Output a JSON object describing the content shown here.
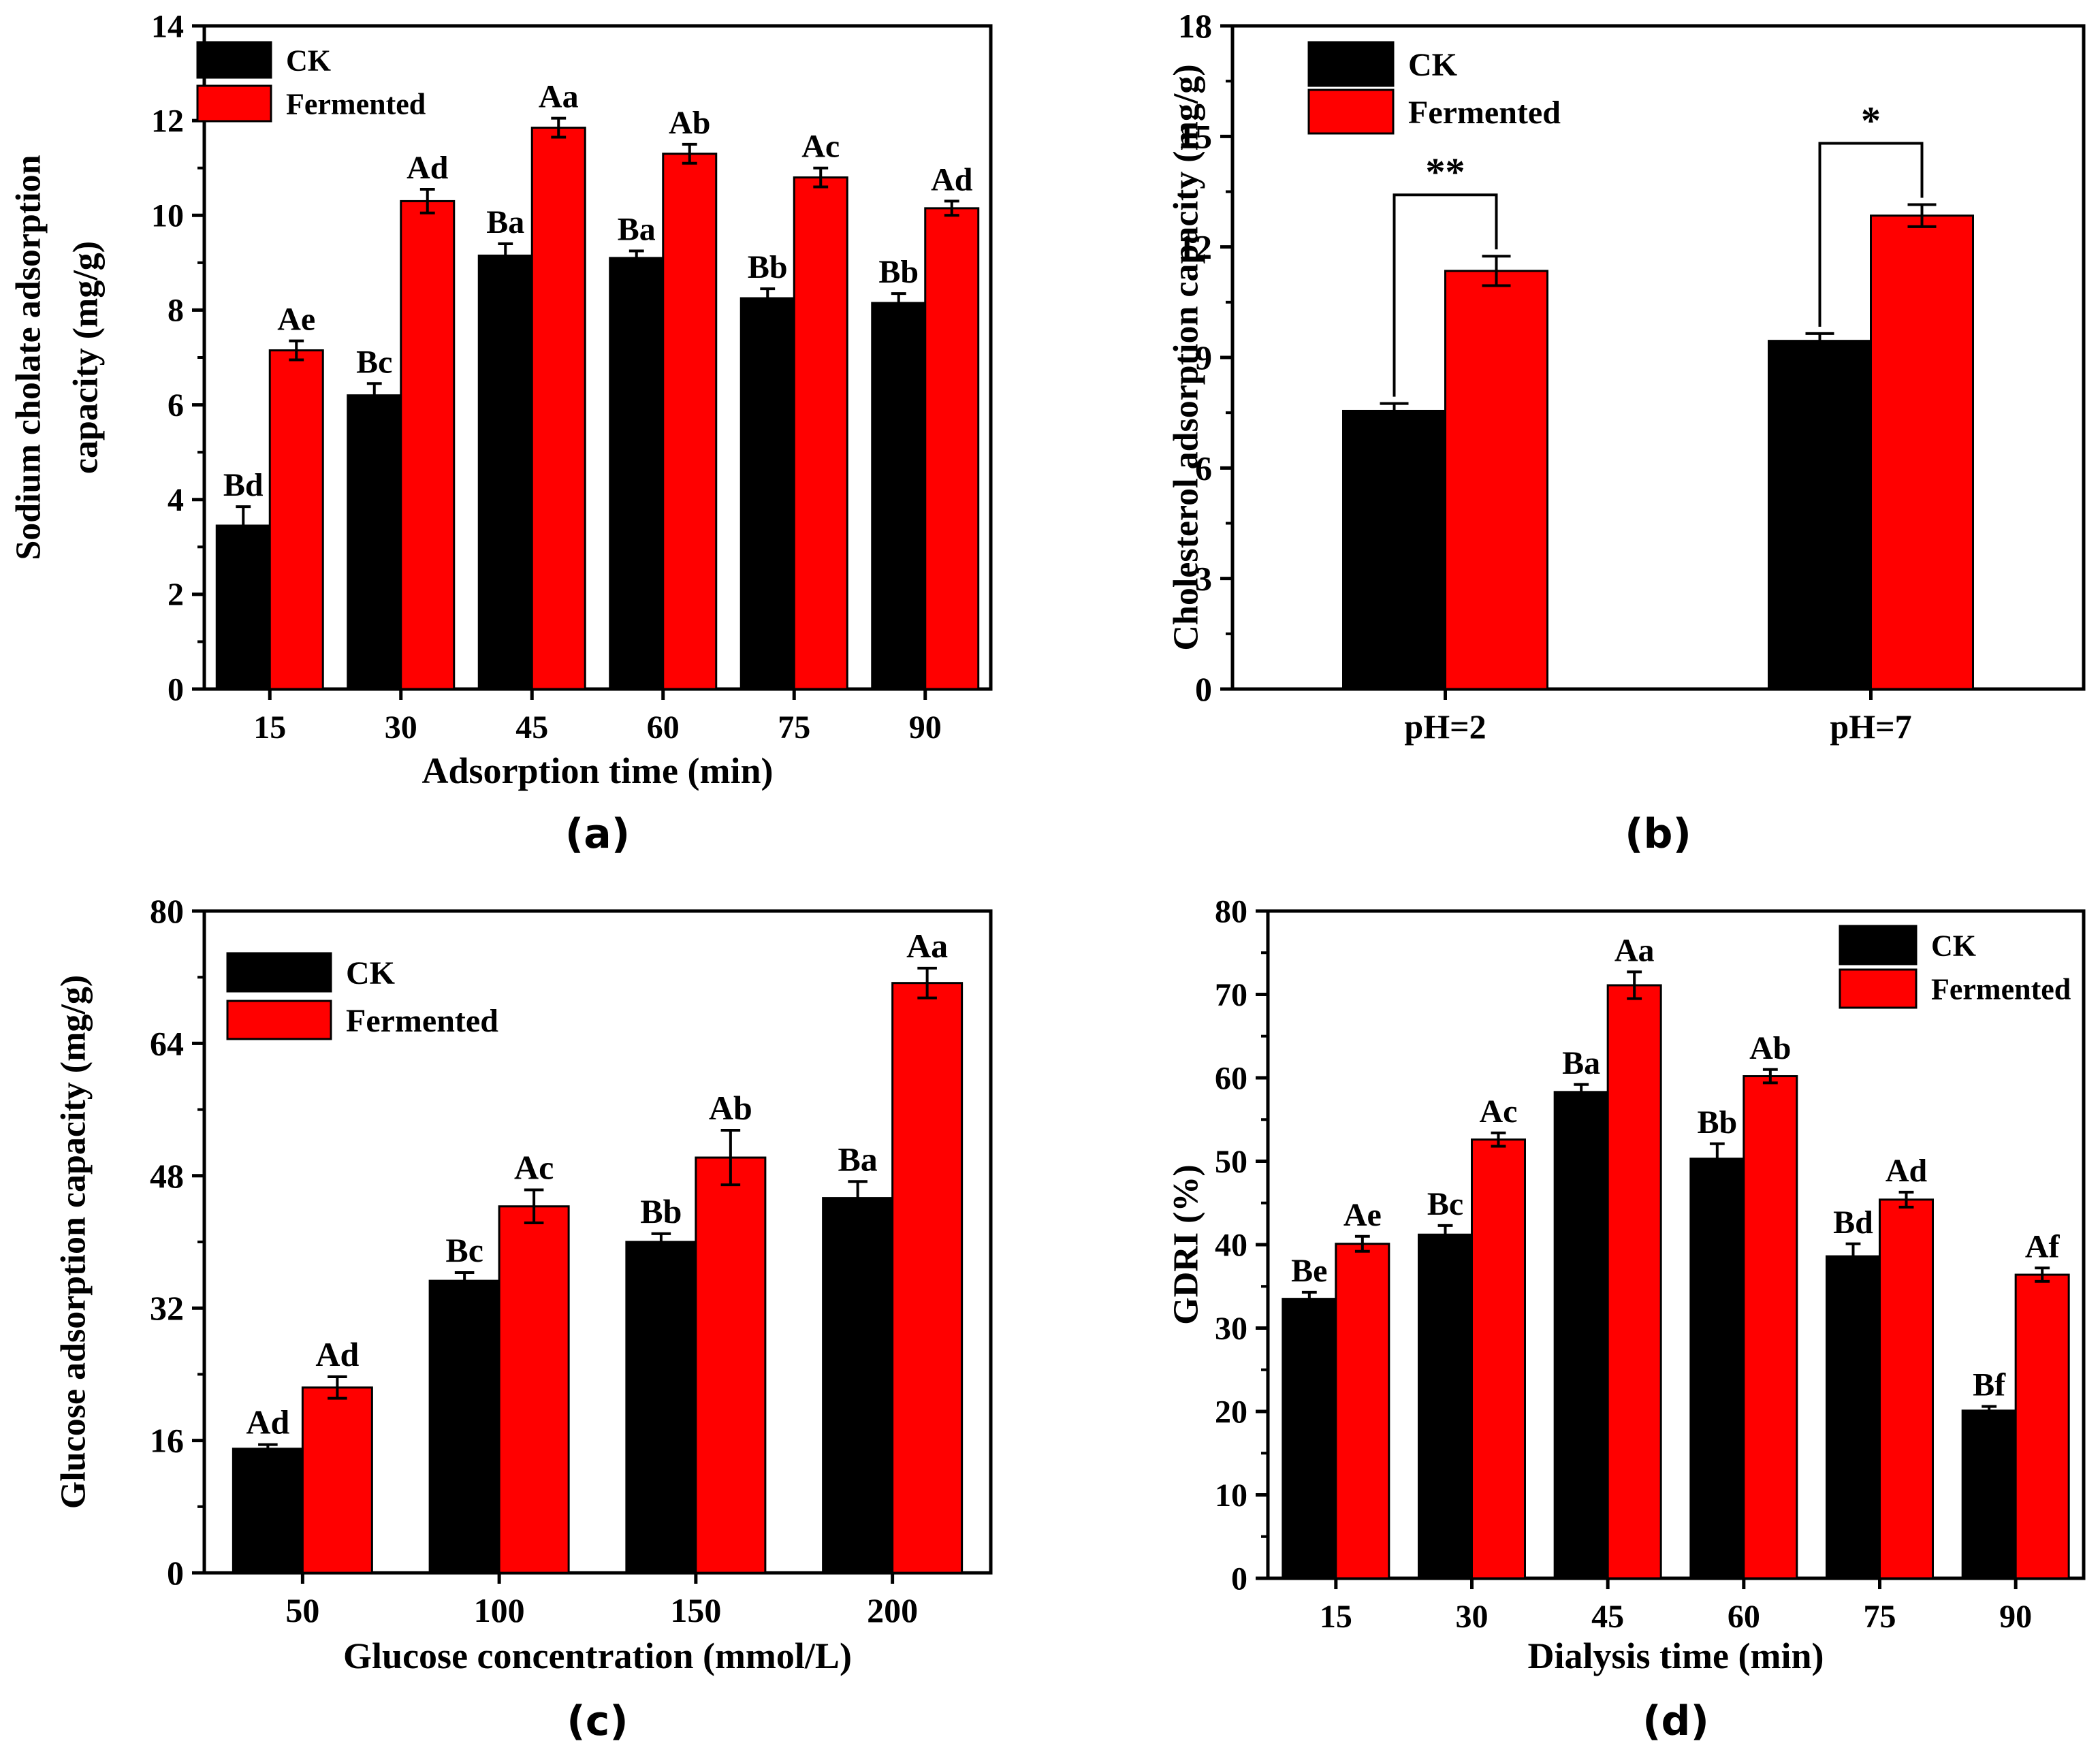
{
  "colors": {
    "ck": "#000000",
    "fermented": "#ff0000"
  },
  "chart_data": [
    {
      "id": "a",
      "type": "bar",
      "panel_label": "(a)",
      "xlabel": "Adsorption time (min)",
      "ylabel_lines": [
        "Sodium cholate adsorption",
        "capacity (mg/g)"
      ],
      "ylim": [
        0,
        14
      ],
      "yticks": [
        0,
        2,
        4,
        6,
        8,
        10,
        12,
        14
      ],
      "ytick_labels": [
        "0",
        "2",
        "4",
        "6",
        "8",
        "10",
        "12",
        "14"
      ],
      "categories": [
        "15",
        "30",
        "45",
        "60",
        "75",
        "90"
      ],
      "legend": [
        "CK",
        "Fermented"
      ],
      "legend_position": "top-left",
      "series": [
        {
          "name": "CK",
          "values": [
            3.45,
            6.2,
            9.15,
            9.1,
            8.25,
            8.15
          ],
          "errors": [
            0.4,
            0.25,
            0.25,
            0.15,
            0.2,
            0.2
          ],
          "labels": [
            "Bd",
            "Bc",
            "Ba",
            "Ba",
            "Bb",
            "Bb"
          ]
        },
        {
          "name": "Fermented",
          "values": [
            7.15,
            10.3,
            11.85,
            11.3,
            10.8,
            10.15
          ],
          "errors": [
            0.2,
            0.25,
            0.2,
            0.2,
            0.2,
            0.15
          ],
          "labels": [
            "Ae",
            "Ad",
            "Aa",
            "Ab",
            "Ac",
            "Ad"
          ]
        }
      ]
    },
    {
      "id": "b",
      "type": "bar",
      "panel_label": "(b)",
      "xlabel": "",
      "ylabel_lines": [
        "Cholesterol adsorption capacity (mg/g)"
      ],
      "ylim": [
        0,
        18
      ],
      "yticks": [
        0,
        3,
        6,
        9,
        12,
        15,
        18
      ],
      "ytick_labels": [
        "0",
        "3",
        "6",
        "9",
        "12",
        "15",
        "18"
      ],
      "categories": [
        "pH=2",
        "pH=7"
      ],
      "legend": [
        "CK",
        "Fermented"
      ],
      "legend_position": "top-left",
      "series": [
        {
          "name": "CK",
          "values": [
            7.55,
            9.45
          ],
          "errors": [
            0.2,
            0.2
          ],
          "labels": [
            "",
            ""
          ]
        },
        {
          "name": "Fermented",
          "values": [
            11.35,
            12.85
          ],
          "errors": [
            0.4,
            0.3
          ],
          "labels": [
            "",
            ""
          ]
        }
      ],
      "significance": [
        "**",
        "*"
      ]
    },
    {
      "id": "c",
      "type": "bar",
      "panel_label": "(c)",
      "xlabel": "Glucose concentration (mmol/L)",
      "ylabel_lines": [
        "Glucose adsorption capacity (mg/g)"
      ],
      "ylim": [
        0,
        80
      ],
      "yticks": [
        0,
        16,
        32,
        48,
        64,
        80
      ],
      "ytick_labels": [
        "0",
        "16",
        "32",
        "48",
        "64",
        "80"
      ],
      "categories": [
        "50",
        "100",
        "150",
        "200"
      ],
      "legend": [
        "CK",
        "Fermented"
      ],
      "legend_position": "top-left",
      "series": [
        {
          "name": "CK",
          "values": [
            15,
            35.3,
            40,
            45.3
          ],
          "errors": [
            0.5,
            1.0,
            1.0,
            2.0
          ],
          "labels": [
            "Ad",
            "Bc",
            "Bb",
            "Ba"
          ]
        },
        {
          "name": "Fermented",
          "values": [
            22.4,
            44.3,
            50.2,
            71.3
          ],
          "errors": [
            1.3,
            2.0,
            3.3,
            1.8
          ],
          "labels": [
            "Ad",
            "Ac",
            "Ab",
            "Aa"
          ]
        }
      ]
    },
    {
      "id": "d",
      "type": "bar",
      "panel_label": "(d)",
      "xlabel": "Dialysis time (min)",
      "ylabel_lines": [
        "GDRI (%)"
      ],
      "ylim": [
        0,
        80
      ],
      "yticks": [
        0,
        10,
        20,
        30,
        40,
        50,
        60,
        70,
        80
      ],
      "ytick_labels": [
        "0",
        "10",
        "20",
        "30",
        "40",
        "50",
        "60",
        "70",
        "80"
      ],
      "categories": [
        "15",
        "30",
        "45",
        "60",
        "75",
        "90"
      ],
      "legend": [
        "CK",
        "Fermented"
      ],
      "legend_position": "top-right",
      "series": [
        {
          "name": "CK",
          "values": [
            33.5,
            41.2,
            58.3,
            50.3,
            38.6,
            20.1
          ],
          "errors": [
            0.8,
            1.1,
            0.9,
            1.8,
            1.5,
            0.5
          ],
          "labels": [
            "Be",
            "Bc",
            "Ba",
            "Bb",
            "Bd",
            "Bf"
          ]
        },
        {
          "name": "Fermented",
          "values": [
            40.1,
            52.6,
            71.1,
            60.2,
            45.4,
            36.4
          ],
          "errors": [
            0.9,
            0.8,
            1.6,
            0.8,
            0.9,
            0.8
          ],
          "labels": [
            "Ae",
            "Ac",
            "Aa",
            "Ab",
            "Ad",
            "Af"
          ]
        }
      ]
    }
  ]
}
